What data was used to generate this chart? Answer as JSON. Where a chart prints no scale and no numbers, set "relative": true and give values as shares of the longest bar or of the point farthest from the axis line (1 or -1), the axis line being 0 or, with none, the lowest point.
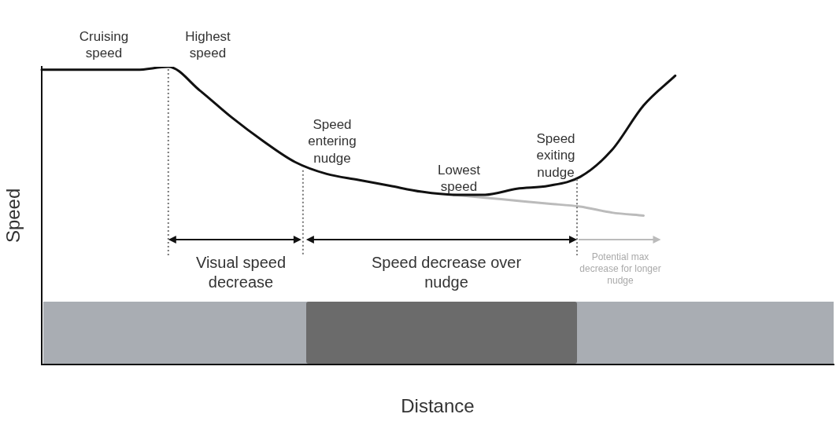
{
  "chart_data": {
    "type": "line",
    "relative": true,
    "xlabel": "Distance",
    "ylabel": "Speed",
    "marker": "none",
    "line_style": "solid",
    "categories": [
      null,
      null,
      null,
      null,
      null,
      null,
      null,
      null,
      null,
      null,
      null,
      null,
      null,
      null,
      null,
      null,
      null,
      null,
      null,
      null,
      null,
      null,
      null,
      null,
      null,
      null
    ],
    "series": [
      {
        "color": "#111111",
        "values": [
          0.99,
          0.99,
          0.99,
          0.99,
          1.0,
          0.92,
          0.83,
          0.75,
          0.68,
          0.64,
          0.62,
          0.6,
          0.58,
          0.57,
          0.57,
          0.59,
          0.6,
          0.63,
          0.72,
          0.87,
          0.97,
          null,
          null,
          null,
          null,
          null
        ]
      },
      {
        "color": "#bbbbbb",
        "values": [
          null,
          null,
          null,
          null,
          null,
          null,
          null,
          null,
          null,
          null,
          null,
          null,
          null,
          0.57,
          0.56,
          0.55,
          0.54,
          0.53,
          0.51,
          0.5,
          null,
          null,
          null,
          null,
          null,
          null
        ]
      }
    ],
    "annotations": [
      "Cruising speed",
      "Highest speed",
      "Speed entering nudge",
      "Lowest speed",
      "Speed exiting nudge",
      "Visual speed decrease",
      "Speed decrease over nudge",
      "Potential max decrease for longer nudge"
    ]
  }
}
